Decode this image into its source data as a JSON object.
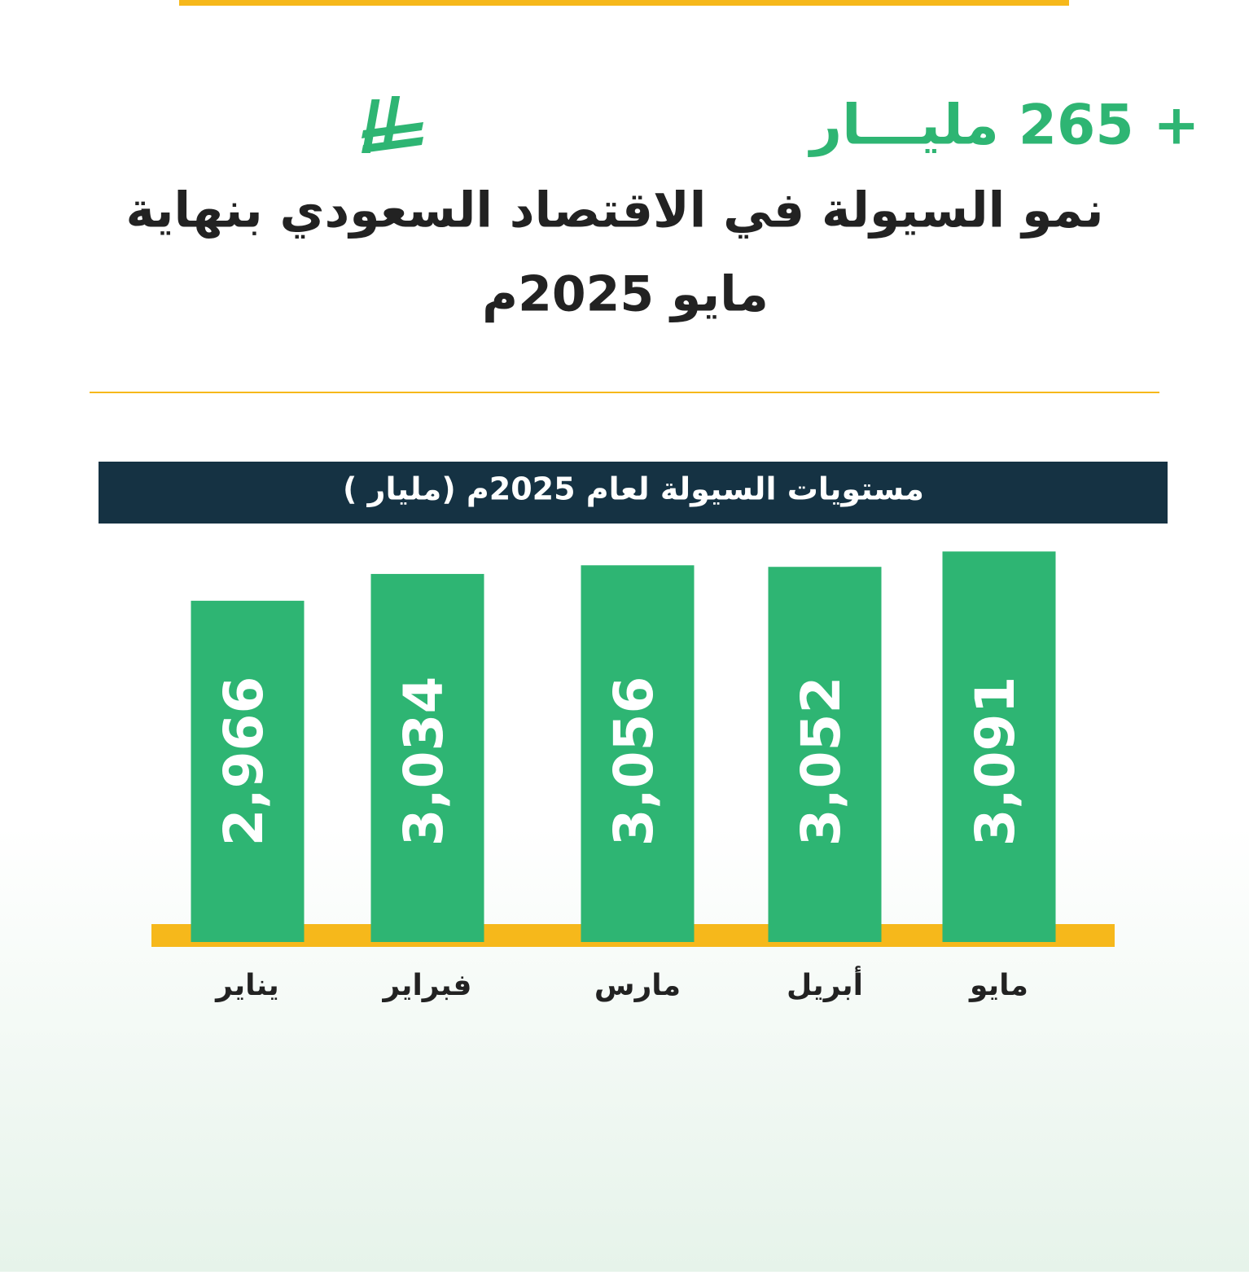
{
  "chart_data": {
    "type": "bar",
    "headline": "+ 265 مليـــار",
    "title": "نمو السيولة في الاقتصاد السعودي بنهاية",
    "subtitle": "مايو 2025م",
    "chart_title": "مستويات السيولة لعام 2025م (مليار )",
    "categories": [
      "يناير",
      "فبراير",
      "مارس",
      "أبريل",
      "مايو"
    ],
    "values": [
      2966,
      3034,
      3056,
      3052,
      3091
    ],
    "value_labels": [
      "2,966",
      "3,034",
      "3,056",
      "3,052",
      "3,091"
    ],
    "color": "#2eb573",
    "ylim": [
      2100,
      3100
    ]
  }
}
